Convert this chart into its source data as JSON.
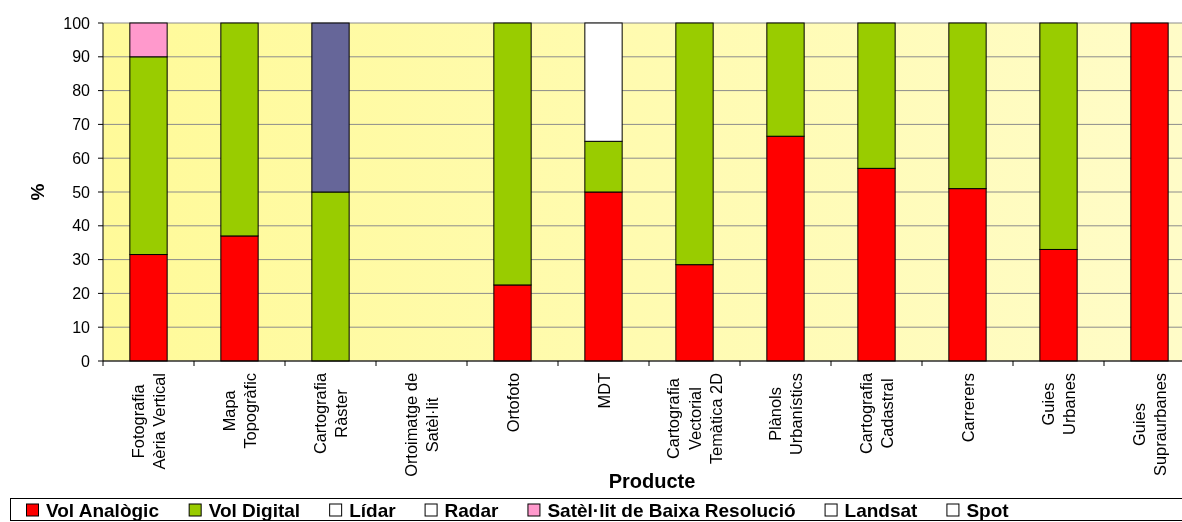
{
  "chart_data": {
    "type": "bar",
    "stacked": true,
    "xlabel": "Producte",
    "ylabel": "%",
    "categories": [
      "Fotografia\nAèria Vertical",
      "Mapa\nTopogràfic",
      "Cartografia\nRàster",
      "Ortoimatge de\nSatèl·lit",
      "Ortofoto",
      "MDT",
      "Cartografia\nVectorial\nTemàtica 2D",
      "Plànols\nUrbanístics",
      "Cartografia\nCadastral",
      "Carrerers",
      "Guies\nUrbanes",
      "Guies\nSupraurbanes"
    ],
    "series": [
      {
        "name": "Vol Analògic",
        "color": "#ff0000",
        "values": [
          31.5,
          37,
          0,
          0,
          22.5,
          50,
          28.5,
          66.5,
          57,
          51,
          33,
          100
        ]
      },
      {
        "name": "Vol Digital",
        "color": "#99cc00",
        "values": [
          58.5,
          63,
          50,
          0,
          77.5,
          15,
          71.5,
          33.5,
          43,
          49,
          67,
          0
        ]
      },
      {
        "name": "Lídar",
        "color": "#ffffff",
        "values": [
          0,
          0,
          0,
          0,
          0,
          35,
          0,
          0,
          0,
          0,
          0,
          0
        ]
      },
      {
        "name": "Radar",
        "color": "#ffffff",
        "values": [
          0,
          0,
          0,
          0,
          0,
          0,
          0,
          0,
          0,
          0,
          0,
          0
        ]
      },
      {
        "name": "Satèl·lit de Baixa Resolució",
        "color": "#ff99cc",
        "values": [
          10,
          0,
          0,
          0,
          0,
          0,
          0,
          0,
          0,
          0,
          0,
          0
        ]
      },
      {
        "name": "Landsat",
        "color": "#ffffff",
        "values": [
          0,
          0,
          0,
          0,
          0,
          0,
          0,
          0,
          0,
          0,
          0,
          0
        ]
      },
      {
        "name": "Spot",
        "color": "#ffffff",
        "values": [
          0,
          0,
          0,
          0,
          0,
          0,
          0,
          0,
          0,
          0,
          0,
          0
        ]
      },
      {
        "color": "#666699",
        "values": [
          0,
          0,
          50,
          0,
          0,
          0,
          0,
          0,
          0,
          0,
          0,
          0
        ]
      }
    ],
    "ylim": [
      0,
      100
    ],
    "yticks": [
      0,
      10,
      20,
      30,
      40,
      50,
      60,
      70,
      80,
      90,
      100
    ],
    "grid": "y",
    "legend": "bottom"
  }
}
